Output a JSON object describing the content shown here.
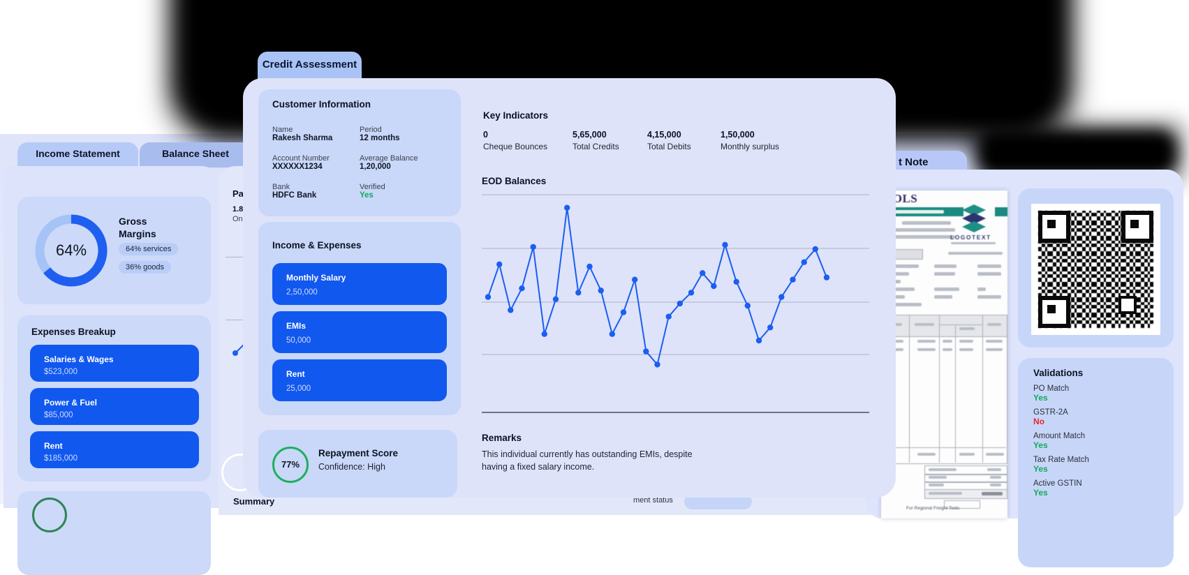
{
  "main_card": {
    "tab": "Credit Assessment",
    "customer_information": {
      "title": "Customer Information",
      "fields": [
        {
          "label": "Name",
          "value": "Rakesh Sharma"
        },
        {
          "label": "Period",
          "value": "12 months"
        },
        {
          "label": "Account Number",
          "value": "XXXXXX1234"
        },
        {
          "label": "Average Balance",
          "value": "1,20,000"
        },
        {
          "label": "Bank",
          "value": "HDFC Bank"
        },
        {
          "label": "Verified",
          "value": "Yes"
        }
      ]
    },
    "income_expenses": {
      "title": "Income & Expenses",
      "items": [
        {
          "name": "Monthly Salary",
          "amount": "2,50,000"
        },
        {
          "name": "EMIs",
          "amount": "50,000"
        },
        {
          "name": "Rent",
          "amount": "25,000"
        }
      ]
    },
    "repayment_score": {
      "score": "77%",
      "title": "Repayment Score",
      "confidence": "Confidence: High",
      "ring_color": "#1fae5e"
    },
    "key_indicators": {
      "title": "Key Indicators",
      "stats": [
        {
          "value": "0",
          "label": "Cheque Bounces"
        },
        {
          "value": "5,65,000",
          "label": "Total Credits"
        },
        {
          "value": "4,15,000",
          "label": "Total Debits"
        },
        {
          "value": "1,50,000",
          "label": "Monthly surplus"
        }
      ]
    },
    "eod_title": "EOD Balances",
    "remarks": {
      "title": "Remarks",
      "line1": "This individual currently has outstanding EMIs, despite",
      "line2": "having a fixed salary income."
    }
  },
  "left_card": {
    "tab_active": "Income Statement",
    "tab_inactive": "Balance Sheet",
    "gross_margins": {
      "title_line1": "Gross",
      "title_line2": "Margins",
      "center_label": "64%",
      "pill_services": "64% services",
      "pill_goods": "36% goods"
    },
    "expenses_breakup": {
      "title": "Expenses Breakup",
      "items": [
        {
          "name": "Salaries & Wages",
          "amount": "$523,000"
        },
        {
          "name": "Power & Fuel",
          "amount": "$85,000"
        },
        {
          "name": "Rent",
          "amount": "$185,000"
        }
      ]
    }
  },
  "behind_card": {
    "heading_fragment": "Pa",
    "value_fragment": "1.8",
    "label_fragment": "On",
    "summary_fragment": "Summary",
    "status_fragment": "ment status"
  },
  "right_card": {
    "tab_fragment": "t Note",
    "invoice": {
      "brand_fragment": "OOLS",
      "logo_text": "LOGOTEXT",
      "signature": "For Regional Freight Tools"
    },
    "validations": {
      "title": "Validations",
      "items": [
        {
          "label": "PO Match",
          "value": "Yes",
          "status": "yes"
        },
        {
          "label": "GSTR-2A",
          "value": "No",
          "status": "no"
        },
        {
          "label": "Amount Match",
          "value": "Yes",
          "status": "yes"
        },
        {
          "label": "Tax Rate Match",
          "value": "Yes",
          "status": "yes"
        },
        {
          "label": "Active GSTIN",
          "value": "Yes",
          "status": "yes"
        }
      ]
    }
  },
  "colors": {
    "accent_blue": "#1158ef",
    "line_blue": "#1b5ef0",
    "donut_dark": "#1e5ff0",
    "donut_light": "#a5c3f6",
    "green": "#12a95c",
    "red": "#e8262b"
  },
  "chart_data": [
    {
      "type": "line",
      "title": "EOD Balances",
      "xlabel": "",
      "ylabel": "",
      "x": [
        1,
        2,
        3,
        4,
        5,
        6,
        7,
        8,
        9,
        10,
        11,
        12,
        13,
        14,
        15,
        16,
        17,
        18,
        19,
        20,
        21,
        22,
        23,
        24,
        25,
        26,
        27,
        28,
        29,
        30,
        31
      ],
      "series": [
        {
          "name": "EOD Balance (normalized 0-100)",
          "values": [
            53,
            68,
            47,
            57,
            76,
            36,
            52,
            94,
            55,
            67,
            56,
            36,
            46,
            61,
            28,
            22,
            44,
            50,
            55,
            64,
            58,
            77,
            60,
            49,
            33,
            39,
            53,
            61,
            69,
            75,
            62
          ]
        }
      ],
      "ylim": [
        0,
        100
      ],
      "grid": true,
      "legend": false,
      "notes": "No axis tick labels shown in UI; values estimated from gridlines (bottom axis=0, top gridline≈100)."
    },
    {
      "type": "pie",
      "title": "Gross Margins",
      "labels": [
        "services",
        "goods"
      ],
      "values": [
        64,
        36
      ],
      "center_label": "64%",
      "legend": false
    }
  ]
}
